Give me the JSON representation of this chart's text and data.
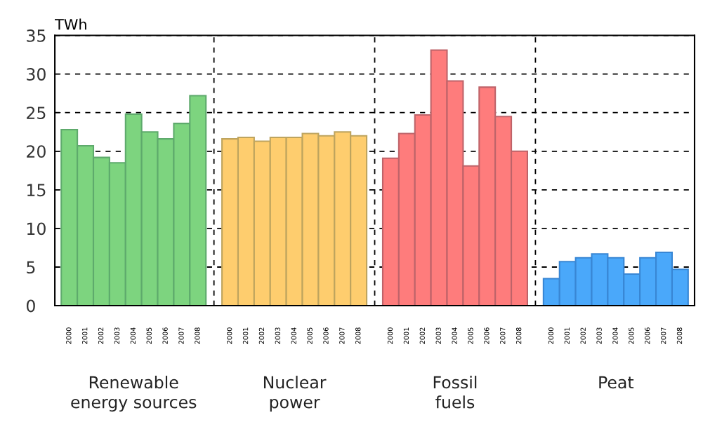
{
  "chart_data": {
    "type": "bar",
    "ylabel": "TWh",
    "categories": [
      "2000",
      "2001",
      "2002",
      "2003",
      "2004",
      "2005",
      "2006",
      "2007",
      "2008",
      null,
      "2000",
      "2001",
      "2002",
      "2003",
      "2004",
      "2005",
      "2006",
      "2007",
      "2008",
      null,
      "2000",
      "2001",
      "2002",
      "2003",
      "2004",
      "2005",
      "2006",
      "2007",
      "2008",
      null,
      "2000",
      "2001",
      "2002",
      "2003",
      "2004",
      "2005",
      "2006",
      "2007",
      "2008"
    ],
    "series": [
      {
        "color": "#7dd47f",
        "values": [
          22.8,
          20.7,
          19.2,
          18.5,
          24.8,
          22.5,
          21.6,
          23.6,
          27.2,
          null,
          null,
          null,
          null,
          null,
          null,
          null,
          null,
          null,
          null,
          null,
          null,
          null,
          null,
          null,
          null,
          null,
          null,
          null,
          null,
          null,
          null,
          null,
          null,
          null,
          null,
          null,
          null,
          null,
          null
        ]
      },
      {
        "color": "#fecd6e",
        "values": [
          null,
          null,
          null,
          null,
          null,
          null,
          null,
          null,
          null,
          null,
          21.6,
          21.8,
          21.3,
          21.8,
          21.8,
          22.3,
          22.0,
          22.5,
          22.0,
          null,
          null,
          null,
          null,
          null,
          null,
          null,
          null,
          null,
          null,
          null,
          null,
          null,
          null,
          null,
          null,
          null,
          null,
          null,
          null
        ]
      },
      {
        "color": "#fe7c7c",
        "values": [
          null,
          null,
          null,
          null,
          null,
          null,
          null,
          null,
          null,
          null,
          null,
          null,
          null,
          null,
          null,
          null,
          null,
          null,
          null,
          null,
          19.1,
          22.3,
          24.7,
          33.1,
          29.1,
          18.1,
          28.3,
          24.5,
          20.0,
          null,
          null,
          null,
          null,
          null,
          null,
          null,
          null,
          null,
          null
        ]
      },
      {
        "color": "#4aa8fa",
        "values": [
          null,
          null,
          null,
          null,
          null,
          null,
          null,
          null,
          null,
          null,
          null,
          null,
          null,
          null,
          null,
          null,
          null,
          null,
          null,
          null,
          null,
          null,
          null,
          null,
          null,
          null,
          null,
          null,
          null,
          null,
          3.5,
          5.7,
          6.2,
          6.7,
          6.2,
          4.1,
          6.2,
          6.9,
          4.7
        ]
      }
    ],
    "ylim": [
      0,
      35
    ],
    "yticks": [
      0,
      5,
      10,
      15,
      20,
      25,
      30,
      35
    ],
    "grid": true,
    "legend": false,
    "annotations": [
      "Renewable energy sources",
      "Nuclear power",
      "Fossil fuels",
      "Peat"
    ]
  }
}
